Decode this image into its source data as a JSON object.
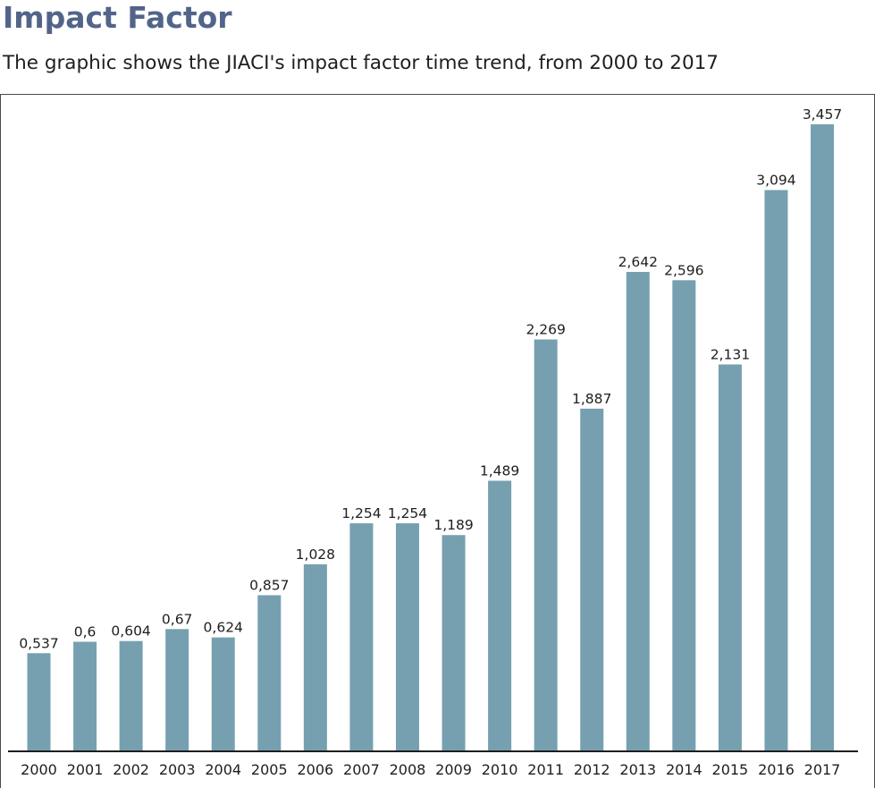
{
  "title": "Impact Factor",
  "subtitle": "The graphic shows the JIACI's impact factor time trend, from 2000 to 2017",
  "colors": {
    "title": "#526489",
    "bar": "#76a0b0",
    "text": "#1e1e1e",
    "frame": "#4a4a4a"
  },
  "chart_data": {
    "type": "bar",
    "title": "",
    "xlabel": "",
    "ylabel": "",
    "categories": [
      "2000",
      "2001",
      "2002",
      "2003",
      "2004",
      "2005",
      "2006",
      "2007",
      "2008",
      "2009",
      "2010",
      "2011",
      "2012",
      "2013",
      "2014",
      "2015",
      "2016",
      "2017"
    ],
    "values": [
      0.537,
      0.6,
      0.604,
      0.67,
      0.624,
      0.857,
      1.028,
      1.254,
      1.254,
      1.189,
      1.489,
      2.269,
      1.887,
      2.642,
      2.596,
      2.131,
      3.094,
      3.457
    ],
    "value_labels": [
      "0,537",
      "0,6",
      "0,604",
      "0,67",
      "0,624",
      "0,857",
      "1,028",
      "1,254",
      "1,254",
      "1,189",
      "1,489",
      "2,269",
      "1,887",
      "2,642",
      "2,596",
      "2,131",
      "3,094",
      "3,457"
    ],
    "ylim": [
      0,
      3.5
    ],
    "grid": false,
    "legend": "none"
  }
}
